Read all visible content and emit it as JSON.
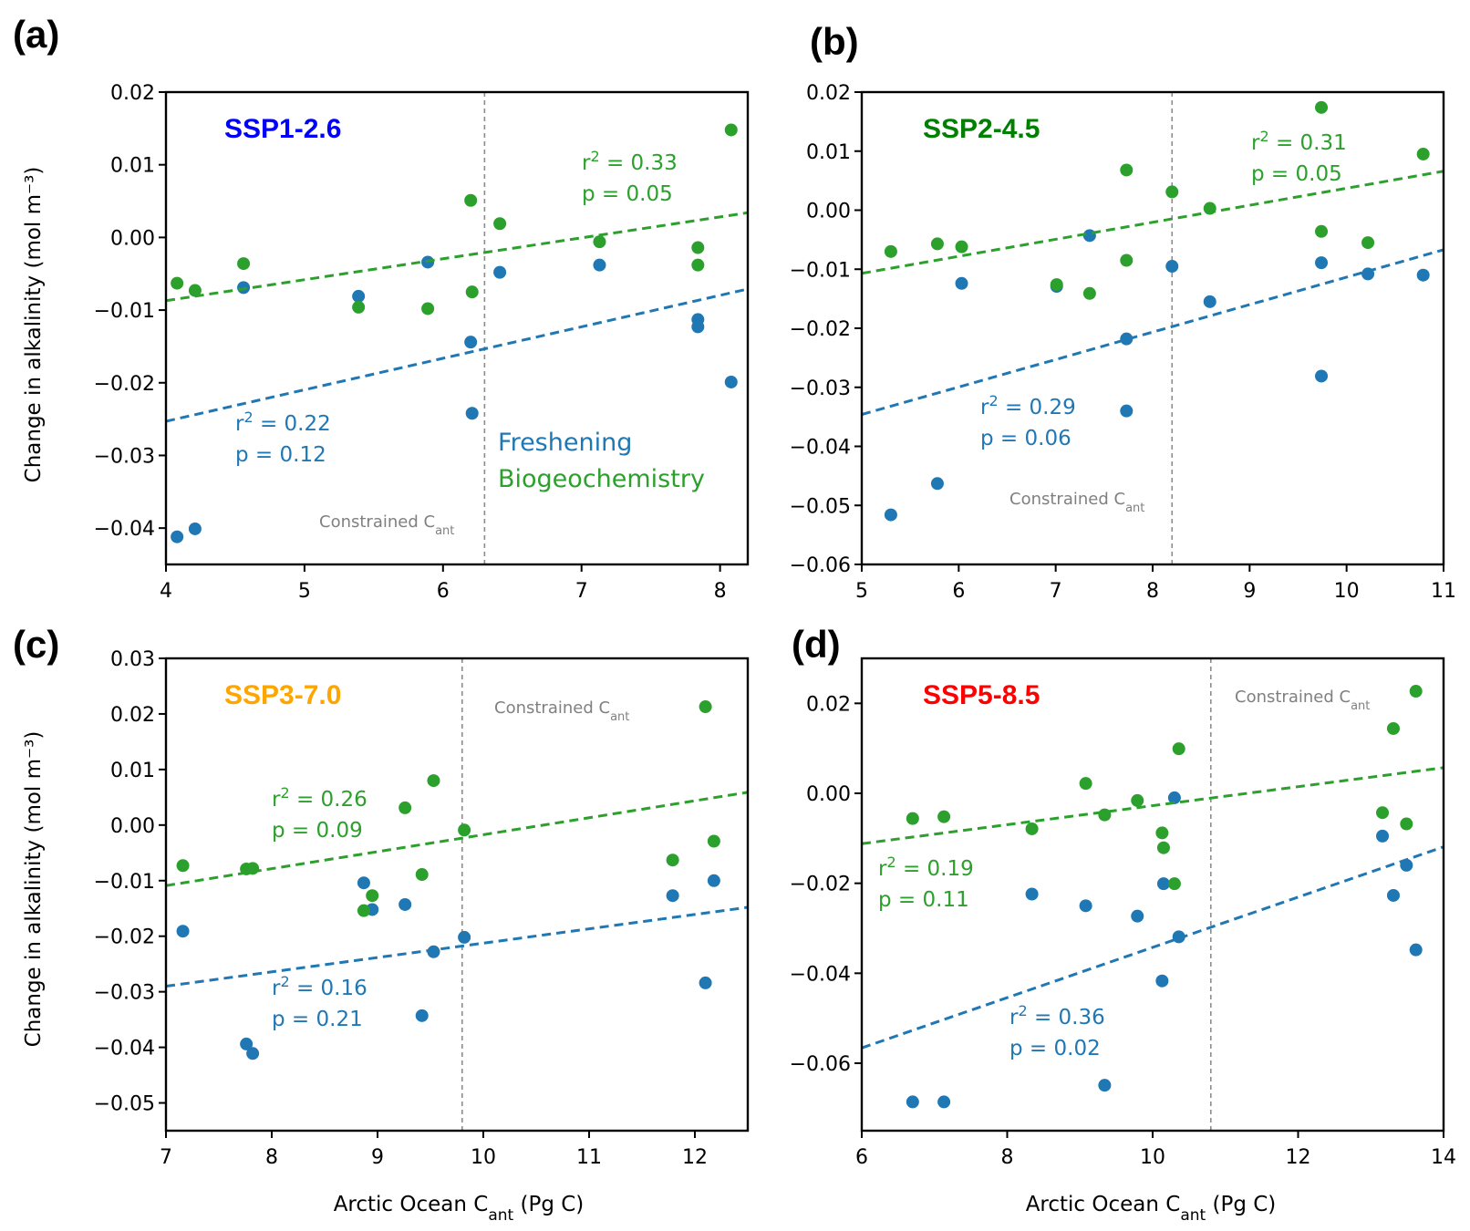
{
  "colors": {
    "blue": "#1f77b4",
    "green": "#2ca02c",
    "gray": "#808080"
  },
  "labels": {
    "ylabel": "Change in alkalinity (mol m⁻³)",
    "xlabel_prefix": "Arctic Ocean C",
    "xlabel_sub": "ant",
    "xlabel_suffix": " (Pg C)",
    "constraint_prefix": "Constrained C",
    "constraint_sub": "ant",
    "r2_prefix": "r",
    "r2_sup": "2",
    "r2_mid": " = ",
    "p_prefix": "p  = ",
    "legend_freshening": "Freshening",
    "legend_biogeochemistry": "Biogeochemistry"
  },
  "chart_data": [
    {
      "type": "scatter",
      "panel": "(a)",
      "title": "SSP1-2.6",
      "title_color": "#0000ff",
      "xlim": [
        4,
        8.2
      ],
      "ylim": [
        -0.045,
        0.02
      ],
      "xticks": [
        4,
        5,
        6,
        7,
        8
      ],
      "yticks": [
        -0.04,
        -0.03,
        -0.02,
        -0.01,
        0.0,
        0.01,
        0.02
      ],
      "ytick_labels": [
        "−0.04",
        "−0.03",
        "−0.02",
        "−0.01",
        "0.00",
        "0.01",
        "0.02"
      ],
      "constrained_cant": 6.3,
      "series": [
        {
          "name": "Freshening",
          "color": "#1f77b4",
          "x": [
            4.08,
            4.21,
            4.56,
            5.39,
            5.89,
            6.2,
            6.21,
            6.41,
            7.13,
            7.84,
            7.84,
            8.08
          ],
          "y": [
            -0.0412,
            -0.0401,
            -0.0069,
            -0.0081,
            -0.0034,
            -0.0144,
            -0.0242,
            -0.0048,
            -0.0038,
            -0.0113,
            -0.0123,
            -0.0199
          ],
          "fit": {
            "x": [
              4,
              8.2
            ],
            "y": [
              -0.0253,
              -0.0071
            ]
          },
          "r2": "0.22",
          "p": "0.12"
        },
        {
          "name": "Biogeochemistry",
          "color": "#2ca02c",
          "x": [
            4.08,
            4.21,
            4.56,
            5.39,
            5.89,
            6.2,
            6.21,
            6.41,
            7.13,
            7.84,
            7.84,
            8.08
          ],
          "y": [
            -0.0063,
            -0.0073,
            -0.0036,
            -0.0096,
            -0.0098,
            0.0051,
            -0.0075,
            0.0019,
            -0.0006,
            -0.0014,
            -0.0038,
            0.0148
          ],
          "fit": {
            "x": [
              4,
              8.2
            ],
            "y": [
              -0.0087,
              0.0034
            ]
          },
          "r2": "0.33",
          "p": "0.05"
        }
      ]
    },
    {
      "type": "scatter",
      "panel": "(b)",
      "title": "SSP2-4.5",
      "title_color": "#008000",
      "xlim": [
        5,
        11
      ],
      "ylim": [
        -0.06,
        0.02
      ],
      "xticks": [
        5,
        6,
        7,
        8,
        9,
        10,
        11
      ],
      "yticks": [
        -0.06,
        -0.05,
        -0.04,
        -0.03,
        -0.02,
        -0.01,
        0.0,
        0.01,
        0.02
      ],
      "ytick_labels": [
        "−0.06",
        "−0.05",
        "−0.04",
        "−0.03",
        "−0.02",
        "−0.01",
        "0.00",
        "0.01",
        "0.02"
      ],
      "constrained_cant": 8.2,
      "series": [
        {
          "name": "Freshening",
          "color": "#1f77b4",
          "x": [
            5.3,
            5.78,
            6.03,
            7.01,
            7.35,
            7.73,
            7.73,
            8.2,
            8.59,
            9.74,
            9.74,
            10.22,
            10.79
          ],
          "y": [
            -0.0516,
            -0.0463,
            -0.0124,
            -0.0129,
            -0.0043,
            -0.0218,
            -0.034,
            -0.0095,
            -0.0155,
            -0.0281,
            -0.0089,
            -0.0108,
            -0.011
          ],
          "fit": {
            "x": [
              5,
              11
            ],
            "y": [
              -0.0346,
              -0.0067
            ]
          },
          "r2": "0.29",
          "p": "0.06"
        },
        {
          "name": "Biogeochemistry",
          "color": "#2ca02c",
          "x": [
            5.3,
            5.78,
            6.03,
            7.01,
            7.35,
            7.73,
            7.73,
            8.2,
            8.59,
            9.74,
            9.74,
            10.22,
            10.79
          ],
          "y": [
            -0.007,
            -0.0057,
            -0.0062,
            -0.0126,
            -0.0141,
            0.0068,
            -0.0085,
            0.0031,
            0.0003,
            0.0174,
            -0.0036,
            -0.0055,
            0.0095
          ],
          "fit": {
            "x": [
              5,
              11
            ],
            "y": [
              -0.0107,
              0.0066
            ]
          },
          "r2": "0.31",
          "p": "0.05"
        }
      ]
    },
    {
      "type": "scatter",
      "panel": "(c)",
      "title": "SSP3-7.0",
      "title_color": "#ffa500",
      "xlim": [
        7,
        12.5
      ],
      "ylim": [
        -0.055,
        0.03
      ],
      "xticks": [
        7,
        8,
        9,
        10,
        11,
        12
      ],
      "yticks": [
        -0.05,
        -0.04,
        -0.03,
        -0.02,
        -0.01,
        0.0,
        0.01,
        0.02,
        0.03
      ],
      "ytick_labels": [
        "−0.05",
        "−0.04",
        "−0.03",
        "−0.02",
        "−0.01",
        "0.00",
        "0.01",
        "0.02",
        "0.03"
      ],
      "constrained_cant": 9.8,
      "series": [
        {
          "name": "Freshening",
          "color": "#1f77b4",
          "x": [
            7.16,
            7.76,
            7.82,
            8.87,
            8.95,
            9.26,
            9.42,
            9.53,
            9.82,
            11.79,
            12.1,
            12.18
          ],
          "y": [
            -0.0191,
            -0.0394,
            -0.0411,
            -0.0104,
            -0.0152,
            -0.0143,
            -0.0343,
            -0.0228,
            -0.0202,
            -0.0127,
            -0.0284,
            -0.01
          ],
          "fit": {
            "x": [
              7,
              12.5
            ],
            "y": [
              -0.029,
              -0.0148
            ]
          },
          "r2": "0.16",
          "p": "0.21"
        },
        {
          "name": "Biogeochemistry",
          "color": "#2ca02c",
          "x": [
            7.16,
            7.76,
            7.82,
            8.87,
            8.95,
            9.26,
            9.42,
            9.53,
            9.82,
            11.79,
            12.1,
            12.18
          ],
          "y": [
            -0.0073,
            -0.0079,
            -0.0078,
            -0.0154,
            -0.0127,
            0.0031,
            -0.0089,
            0.008,
            -0.0009,
            -0.0063,
            0.0213,
            -0.0029
          ],
          "fit": {
            "x": [
              7,
              12.5
            ],
            "y": [
              -0.0109,
              0.0059
            ]
          },
          "r2": "0.26",
          "p": "0.09"
        }
      ]
    },
    {
      "type": "scatter",
      "panel": "(d)",
      "title": "SSP5-8.5",
      "title_color": "#ff0000",
      "xlim": [
        6,
        14
      ],
      "ylim": [
        -0.075,
        0.03
      ],
      "xticks": [
        6,
        8,
        10,
        12,
        14
      ],
      "yticks": [
        -0.06,
        -0.04,
        -0.02,
        0.0,
        0.02
      ],
      "ytick_labels": [
        "−0.06",
        "−0.04",
        "−0.02",
        "0.00",
        "0.02"
      ],
      "constrained_cant": 10.8,
      "series": [
        {
          "name": "Freshening",
          "color": "#1f77b4",
          "x": [
            6.7,
            7.13,
            8.34,
            9.08,
            9.34,
            9.79,
            10.13,
            10.15,
            10.3,
            10.36,
            13.16,
            13.31,
            13.49,
            13.62
          ],
          "y": [
            -0.0686,
            -0.0686,
            -0.0224,
            -0.025,
            -0.0649,
            -0.0273,
            -0.0417,
            -0.0201,
            -0.001,
            -0.0319,
            -0.0095,
            -0.0227,
            -0.016,
            -0.0348
          ],
          "fit": {
            "x": [
              6,
              14
            ],
            "y": [
              -0.0566,
              -0.0119
            ]
          },
          "r2": "0.36",
          "p": "0.02"
        },
        {
          "name": "Biogeochemistry",
          "color": "#2ca02c",
          "x": [
            6.7,
            7.13,
            8.34,
            9.08,
            9.34,
            9.79,
            10.13,
            10.15,
            10.3,
            10.36,
            13.16,
            13.31,
            13.49,
            13.62
          ],
          "y": [
            -0.0056,
            -0.0052,
            -0.0079,
            0.0022,
            -0.0048,
            -0.0016,
            -0.0088,
            -0.0121,
            -0.0201,
            0.0099,
            -0.0043,
            0.0144,
            -0.0068,
            0.0227
          ],
          "fit": {
            "x": [
              6,
              14
            ],
            "y": [
              -0.0112,
              0.0057
            ]
          },
          "r2": "0.19",
          "p": "0.11"
        }
      ]
    }
  ]
}
